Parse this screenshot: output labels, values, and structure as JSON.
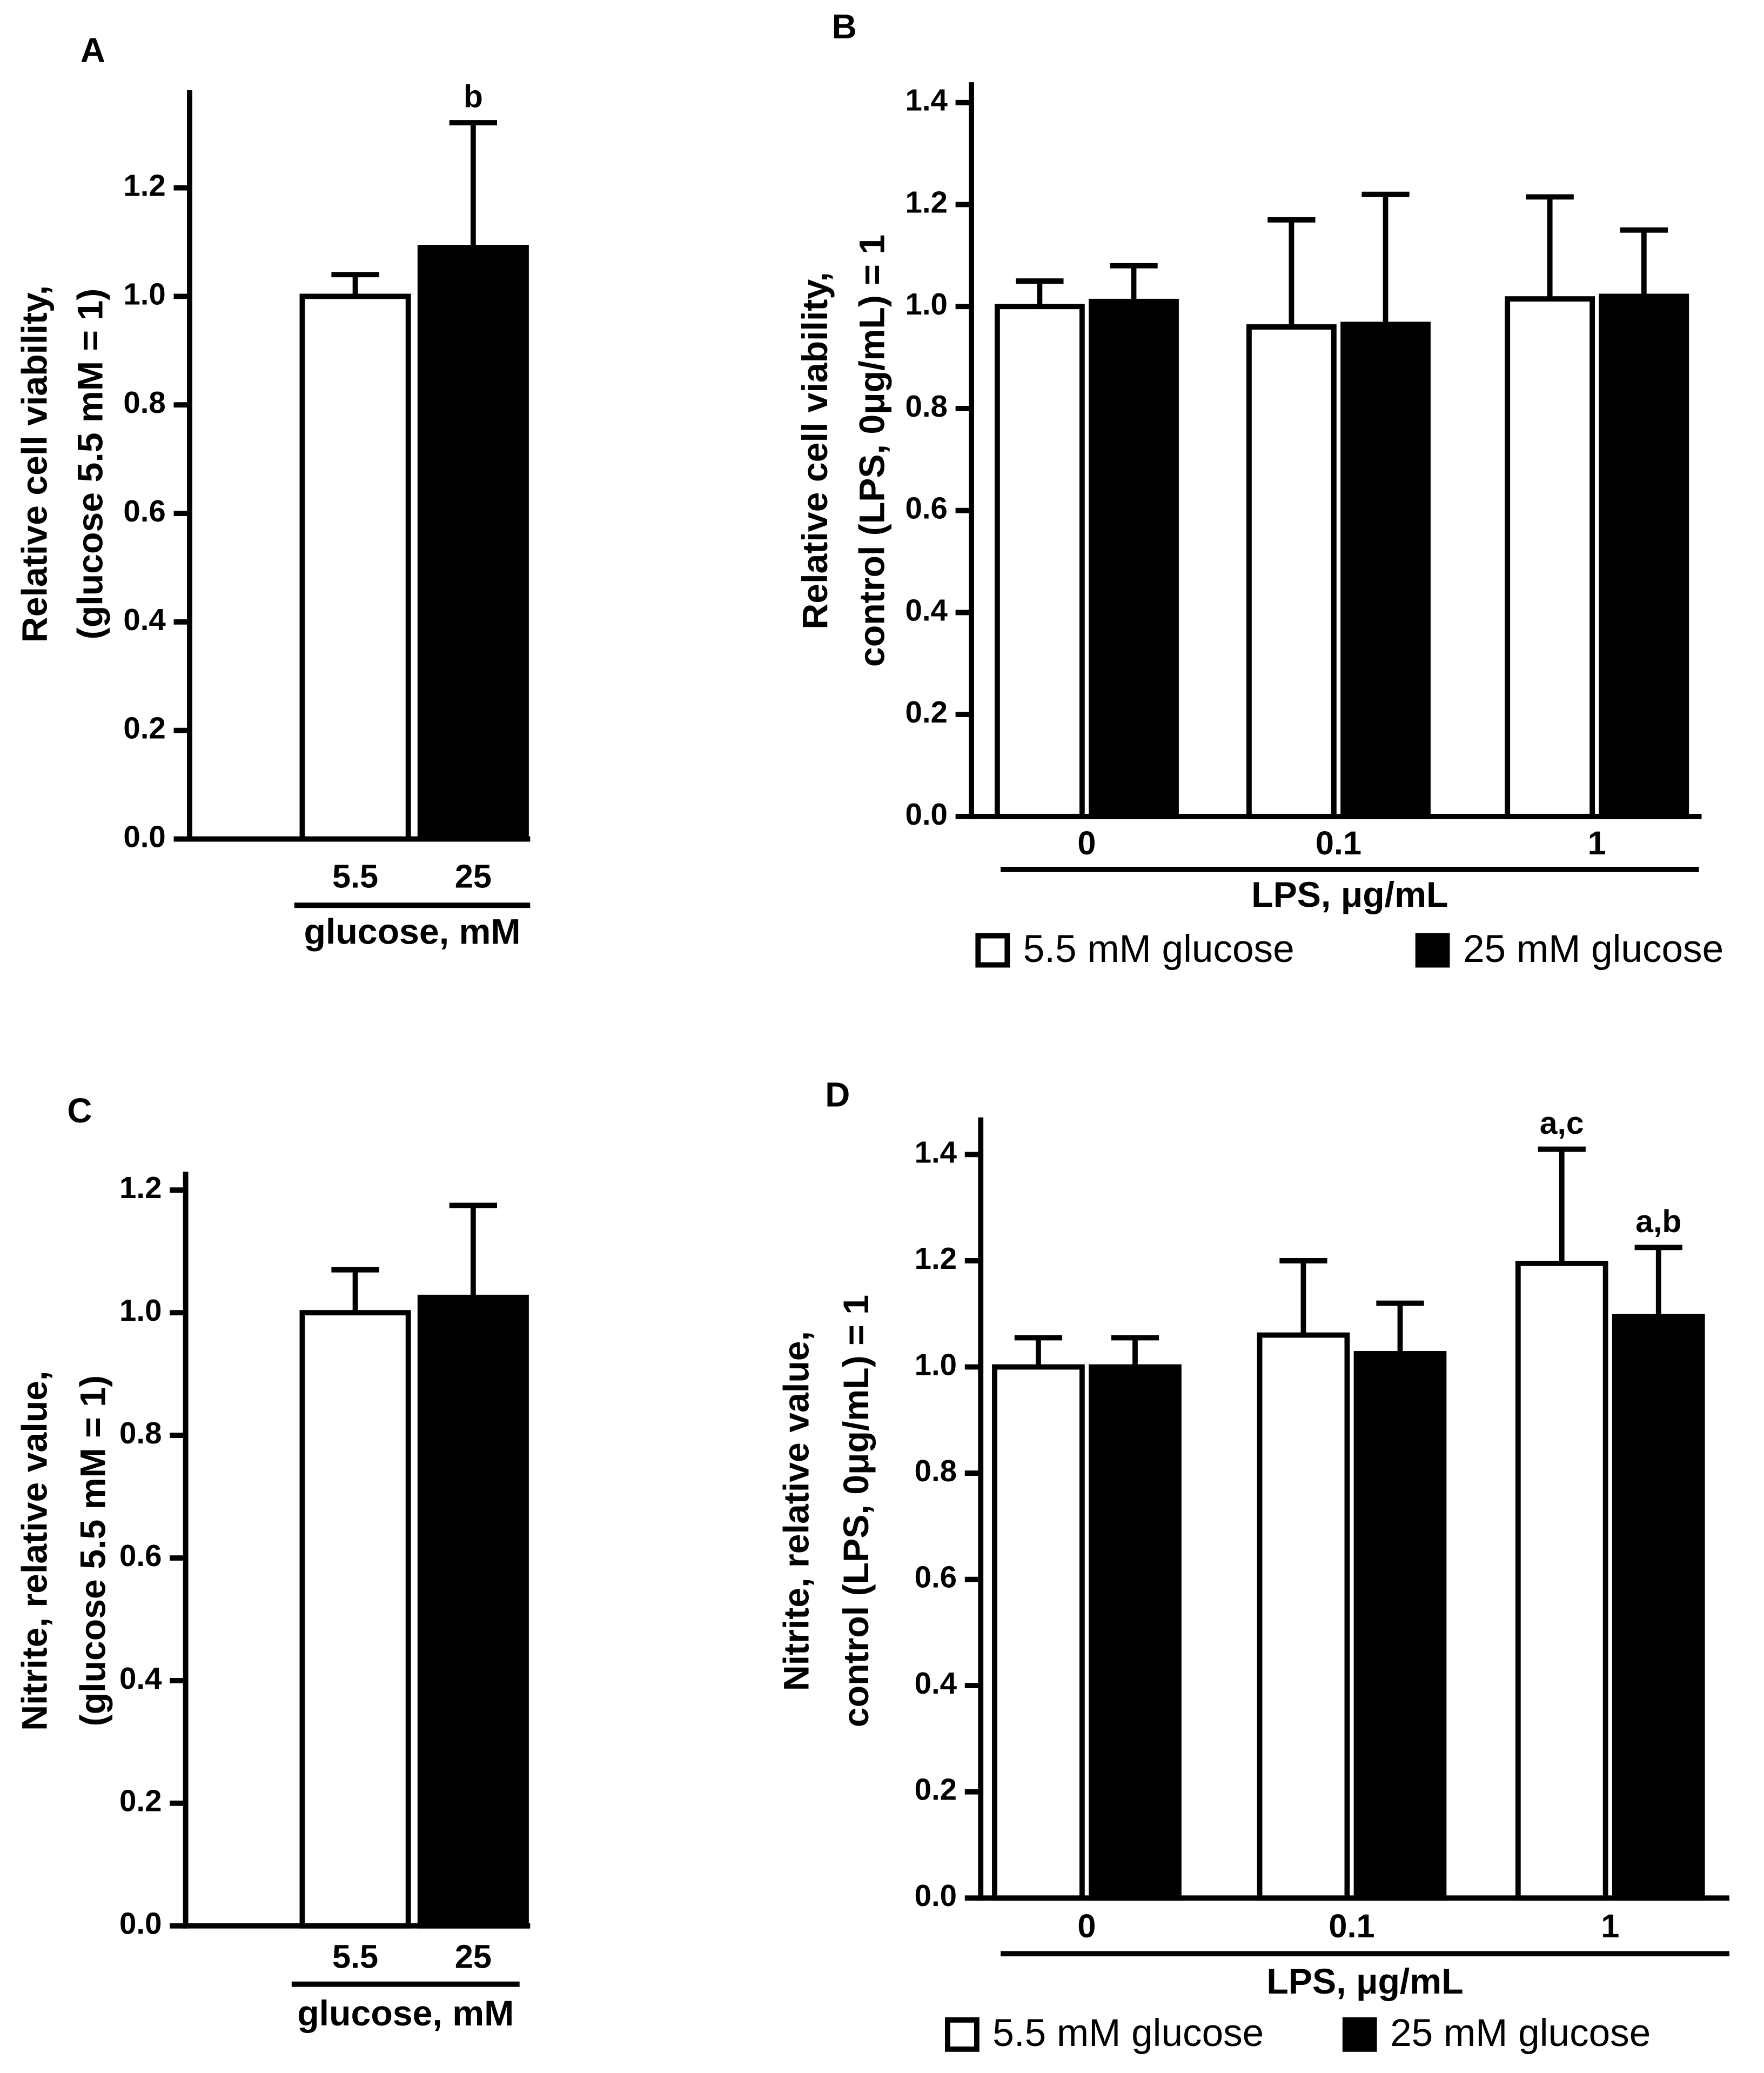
{
  "chart_data": [
    {
      "type": "bar",
      "title": "A",
      "ylabel": [
        "Relative cell viability,",
        "(glucose 5.5 mM = 1)"
      ],
      "xlabel": "glucose, mM",
      "categories": [
        "5.5",
        "25"
      ],
      "values": [
        1.0,
        1.09
      ],
      "errors": [
        0.04,
        0.23
      ],
      "colors": [
        "#ffffff",
        "#000000"
      ],
      "labels": [
        null,
        "b"
      ],
      "ylim": [
        0,
        1.38
      ],
      "yticks": [
        {
          "value": 0,
          "label": "0.0"
        },
        {
          "value": 0.2,
          "label": "0.2"
        },
        {
          "value": 0.4,
          "label": "0.4"
        },
        {
          "value": 0.6,
          "label": "0.6"
        },
        {
          "value": 0.8,
          "label": "0.8"
        },
        {
          "value": 1.0,
          "label": "1.0"
        },
        {
          "value": 1.2,
          "label": "1.2"
        }
      ]
    },
    {
      "type": "grouped_bar",
      "title": "B",
      "ylabel": [
        "Relative cell viability,",
        "control (LPS, 0μg/mL) = 1"
      ],
      "xlabel": "LPS, μg/mL",
      "categories": [
        "0",
        "0.1",
        "1"
      ],
      "series": [
        {
          "name": "5.5 mM glucose",
          "color": "#ffffff",
          "values": [
            1.0,
            0.96,
            1.015
          ],
          "errors": [
            0.05,
            0.21,
            0.2
          ]
        },
        {
          "name": "25 mM glucose",
          "color": "#000000",
          "values": [
            1.01,
            0.965,
            1.02
          ],
          "errors": [
            0.07,
            0.255,
            0.13
          ]
        }
      ],
      "ylim": [
        0,
        1.44
      ],
      "yticks": [
        {
          "value": 0,
          "label": "0.0"
        },
        {
          "value": 0.2,
          "label": "0.2"
        },
        {
          "value": 0.4,
          "label": "0.4"
        },
        {
          "value": 0.6,
          "label": "0.6"
        },
        {
          "value": 0.8,
          "label": "0.8"
        },
        {
          "value": 1.0,
          "label": "1.0"
        },
        {
          "value": 1.2,
          "label": "1.2"
        },
        {
          "value": 1.4,
          "label": "1.4"
        }
      ]
    },
    {
      "type": "bar",
      "title": "C",
      "ylabel": [
        "Nitrite, relative value,",
        "(glucose 5.5 mM = 1)"
      ],
      "xlabel": "glucose, mM",
      "categories": [
        "5.5",
        "25"
      ],
      "values": [
        1.0,
        1.025
      ],
      "errors": [
        0.07,
        0.15
      ],
      "colors": [
        "#ffffff",
        "#000000"
      ],
      "ylim": [
        0,
        1.23
      ],
      "yticks": [
        {
          "value": 0,
          "label": "0.0"
        },
        {
          "value": 0.2,
          "label": "0.2"
        },
        {
          "value": 0.4,
          "label": "0.4"
        },
        {
          "value": 0.6,
          "label": "0.6"
        },
        {
          "value": 0.8,
          "label": "0.8"
        },
        {
          "value": 1.0,
          "label": "1.0"
        },
        {
          "value": 1.2,
          "label": "1.2"
        }
      ]
    },
    {
      "type": "grouped_bar",
      "title": "D",
      "ylabel": [
        "Nitrite, relative value,",
        "control (LPS, 0μg/mL) = 1"
      ],
      "xlabel": "LPS, μg/mL",
      "categories": [
        "0",
        "0.1",
        "1"
      ],
      "series": [
        {
          "name": "5.5 mM glucose",
          "color": "#ffffff",
          "values": [
            1.0,
            1.06,
            1.195
          ],
          "errors": [
            0.055,
            0.14,
            0.215
          ],
          "labels": [
            null,
            null,
            "a,c"
          ]
        },
        {
          "name": "25 mM glucose",
          "color": "#000000",
          "values": [
            1.0,
            1.025,
            1.095
          ],
          "errors": [
            0.055,
            0.095,
            0.13
          ],
          "labels": [
            null,
            null,
            "a,b"
          ]
        }
      ],
      "ylim": [
        0,
        1.47
      ],
      "yticks": [
        {
          "value": 0,
          "label": "0.0"
        },
        {
          "value": 0.2,
          "label": "0.2"
        },
        {
          "value": 0.4,
          "label": "0.4"
        },
        {
          "value": 0.6,
          "label": "0.6"
        },
        {
          "value": 0.8,
          "label": "0.8"
        },
        {
          "value": 1.0,
          "label": "1.0"
        },
        {
          "value": 1.2,
          "label": "1.2"
        },
        {
          "value": 1.4,
          "label": "1.4"
        }
      ]
    }
  ]
}
